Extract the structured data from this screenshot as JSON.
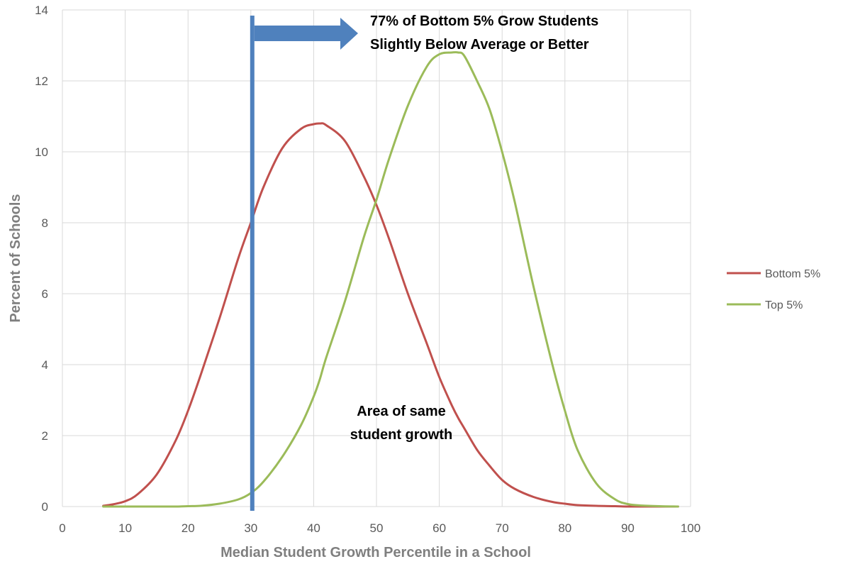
{
  "chart_data": {
    "type": "line",
    "title": "",
    "xlabel": "Median Student Growth Percentile in a School",
    "ylabel": "Percent of Schools",
    "xlim": [
      0,
      100
    ],
    "ylim": [
      0,
      14
    ],
    "x_ticks": [
      0,
      10,
      20,
      30,
      40,
      50,
      60,
      70,
      80,
      90,
      100
    ],
    "y_ticks": [
      0,
      2,
      4,
      6,
      8,
      10,
      12,
      14
    ],
    "grid": true,
    "legend_position": "right",
    "x": [
      6.5,
      8,
      10,
      12,
      15,
      18,
      20,
      22,
      25,
      28,
      30,
      32,
      35,
      38,
      40,
      41,
      42,
      45,
      48,
      50,
      52,
      55,
      58,
      60,
      62,
      63,
      64,
      66,
      68,
      70,
      72,
      75,
      78,
      80,
      82,
      85,
      88,
      90,
      92,
      95,
      98
    ],
    "series": [
      {
        "name": "Bottom 5%",
        "color": "#c0504d",
        "values": [
          0.02,
          0.06,
          0.15,
          0.35,
          0.9,
          1.85,
          2.7,
          3.7,
          5.3,
          7.0,
          8.0,
          9.0,
          10.1,
          10.65,
          10.78,
          10.8,
          10.75,
          10.3,
          9.3,
          8.5,
          7.55,
          6.0,
          4.6,
          3.65,
          2.85,
          2.5,
          2.2,
          1.6,
          1.15,
          0.75,
          0.5,
          0.27,
          0.13,
          0.08,
          0.04,
          0.02,
          0.01,
          0.0,
          0.0,
          0.0,
          0.0
        ]
      },
      {
        "name": "Top 5%",
        "color": "#9bbb59",
        "values": [
          0.0,
          0.0,
          0.0,
          0.0,
          0.0,
          0.0,
          0.01,
          0.02,
          0.08,
          0.2,
          0.38,
          0.7,
          1.4,
          2.3,
          3.1,
          3.6,
          4.2,
          5.8,
          7.6,
          8.65,
          9.8,
          11.3,
          12.4,
          12.75,
          12.8,
          12.8,
          12.7,
          12.0,
          11.2,
          10.0,
          8.6,
          6.2,
          4.0,
          2.7,
          1.6,
          0.65,
          0.2,
          0.07,
          0.03,
          0.01,
          0.0
        ]
      }
    ],
    "marker_line": {
      "x": 30,
      "color": "#4f81bd"
    },
    "annotations": [
      {
        "line1": "77% of Bottom 5% Grow Students",
        "line2": "Slightly Below Average or Better"
      },
      {
        "line1": "Area of same",
        "line2": "student growth"
      }
    ]
  }
}
